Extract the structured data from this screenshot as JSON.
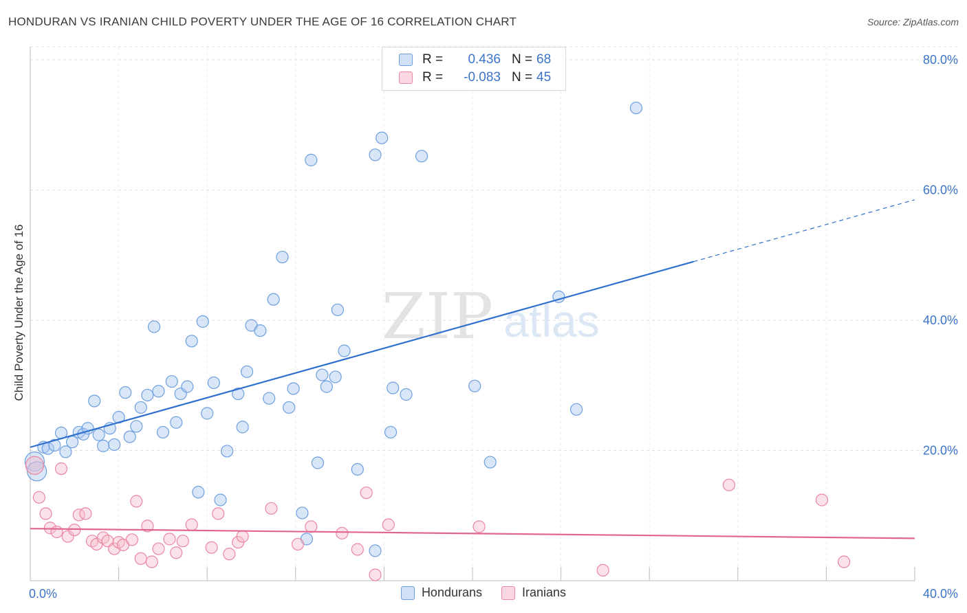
{
  "title": "HONDURAN VS IRANIAN CHILD POVERTY UNDER THE AGE OF 16 CORRELATION CHART",
  "source": "Source: ZipAtlas.com",
  "watermark": {
    "zip": "ZIP",
    "atlas": "atlas"
  },
  "legend": {
    "rows": [
      {
        "r_label": "R =",
        "r_value": "0.436",
        "n_label": "N =",
        "n_value": "68",
        "color": "#a9c8f0",
        "border": "#6d9fe0"
      },
      {
        "r_label": "R =",
        "r_value": "-0.083",
        "n_label": "N =",
        "n_value": "45",
        "color": "#f7bccd",
        "border": "#ea86a4"
      }
    ]
  },
  "bottom_legend": [
    {
      "label": "Hondurans",
      "color": "#a9c8f0",
      "border": "#6d9fe0"
    },
    {
      "label": "Iranians",
      "color": "#f7bccd",
      "border": "#ea86a4"
    }
  ],
  "chart_data": {
    "type": "scatter",
    "title": "HONDURAN VS IRANIAN CHILD POVERTY UNDER THE AGE OF 16 CORRELATION CHART",
    "xlabel": "",
    "ylabel": "Child Poverty Under the Age of 16",
    "xlim": [
      0,
      40
    ],
    "ylim": [
      0,
      82
    ],
    "x_ticks": [
      {
        "value": 0,
        "label": "0.0%"
      },
      {
        "value": 40,
        "label": "40.0%"
      }
    ],
    "y_ticks": [
      {
        "value": 20,
        "label": "20.0%"
      },
      {
        "value": 40,
        "label": "40.0%"
      },
      {
        "value": 60,
        "label": "60.0%"
      },
      {
        "value": 80,
        "label": "80.0%"
      }
    ],
    "grid": true,
    "legend_position": "top-center",
    "series": [
      {
        "name": "Hondurans",
        "color": "#a9c8f0",
        "stroke": "#6d9fe0",
        "line_color": "#2f6fcd",
        "trend": {
          "x0": 0,
          "y0": 20.5,
          "x1": 30,
          "y1": 49,
          "x_ext": 40,
          "y_ext": 58.5
        },
        "points": [
          [
            0.2,
            18.3
          ],
          [
            0.3,
            16.8
          ],
          [
            0.6,
            20.5
          ],
          [
            0.8,
            20.3
          ],
          [
            1.1,
            20.8
          ],
          [
            1.4,
            22.7
          ],
          [
            1.6,
            19.8
          ],
          [
            1.9,
            21.3
          ],
          [
            2.2,
            22.8
          ],
          [
            2.4,
            22.5
          ],
          [
            2.6,
            23.4
          ],
          [
            2.9,
            27.6
          ],
          [
            3.1,
            22.4
          ],
          [
            3.3,
            20.7
          ],
          [
            3.6,
            23.4
          ],
          [
            3.8,
            20.9
          ],
          [
            4.0,
            25.1
          ],
          [
            4.3,
            28.9
          ],
          [
            4.5,
            22.1
          ],
          [
            4.8,
            23.7
          ],
          [
            5.0,
            26.6
          ],
          [
            5.3,
            28.5
          ],
          [
            5.6,
            39.0
          ],
          [
            5.8,
            29.1
          ],
          [
            6.0,
            22.8
          ],
          [
            6.4,
            30.6
          ],
          [
            6.6,
            24.3
          ],
          [
            6.8,
            28.7
          ],
          [
            7.1,
            29.8
          ],
          [
            7.3,
            36.8
          ],
          [
            7.6,
            13.6
          ],
          [
            7.8,
            39.8
          ],
          [
            8.0,
            25.7
          ],
          [
            8.3,
            30.4
          ],
          [
            8.6,
            12.4
          ],
          [
            8.9,
            19.9
          ],
          [
            9.4,
            28.7
          ],
          [
            9.6,
            23.6
          ],
          [
            9.8,
            32.1
          ],
          [
            10.0,
            39.2
          ],
          [
            10.4,
            38.4
          ],
          [
            10.8,
            28.0
          ],
          [
            11.0,
            43.2
          ],
          [
            11.4,
            49.7
          ],
          [
            11.7,
            26.6
          ],
          [
            11.9,
            29.5
          ],
          [
            12.3,
            10.4
          ],
          [
            12.5,
            6.4
          ],
          [
            12.7,
            64.6
          ],
          [
            13.0,
            18.1
          ],
          [
            13.2,
            31.6
          ],
          [
            13.4,
            29.8
          ],
          [
            13.8,
            31.3
          ],
          [
            13.9,
            41.6
          ],
          [
            14.2,
            35.3
          ],
          [
            14.8,
            17.1
          ],
          [
            15.6,
            65.4
          ],
          [
            15.6,
            4.6
          ],
          [
            15.9,
            68.0
          ],
          [
            16.3,
            22.8
          ],
          [
            16.4,
            29.6
          ],
          [
            17.0,
            28.6
          ],
          [
            17.7,
            65.2
          ],
          [
            20.1,
            29.9
          ],
          [
            20.8,
            18.2
          ],
          [
            23.9,
            43.6
          ],
          [
            24.7,
            26.3
          ],
          [
            27.4,
            72.6
          ]
        ]
      },
      {
        "name": "Iranians",
        "color": "#f7bccd",
        "stroke": "#ea86a4",
        "line_color": "#e0668f",
        "trend": {
          "x0": 0,
          "y0": 8.0,
          "x1": 40,
          "y1": 6.5
        },
        "points": [
          [
            0.2,
            17.7
          ],
          [
            0.4,
            12.8
          ],
          [
            0.7,
            10.3
          ],
          [
            0.9,
            8.1
          ],
          [
            1.2,
            7.5
          ],
          [
            1.4,
            17.2
          ],
          [
            1.7,
            6.8
          ],
          [
            2.0,
            7.8
          ],
          [
            2.2,
            10.1
          ],
          [
            2.5,
            10.3
          ],
          [
            2.8,
            6.1
          ],
          [
            3.0,
            5.6
          ],
          [
            3.3,
            6.6
          ],
          [
            3.5,
            6.1
          ],
          [
            3.8,
            4.9
          ],
          [
            4.0,
            5.9
          ],
          [
            4.2,
            5.5
          ],
          [
            4.6,
            6.3
          ],
          [
            4.8,
            12.2
          ],
          [
            5.0,
            3.4
          ],
          [
            5.3,
            8.4
          ],
          [
            5.5,
            2.9
          ],
          [
            5.8,
            4.9
          ],
          [
            6.3,
            6.4
          ],
          [
            6.6,
            4.3
          ],
          [
            6.9,
            6.1
          ],
          [
            7.3,
            8.6
          ],
          [
            8.2,
            5.1
          ],
          [
            8.5,
            10.3
          ],
          [
            9.0,
            4.1
          ],
          [
            9.4,
            5.9
          ],
          [
            9.6,
            6.8
          ],
          [
            10.9,
            11.1
          ],
          [
            12.1,
            5.6
          ],
          [
            12.7,
            8.3
          ],
          [
            14.1,
            7.3
          ],
          [
            14.8,
            4.8
          ],
          [
            15.2,
            13.5
          ],
          [
            15.6,
            0.9
          ],
          [
            16.2,
            8.6
          ],
          [
            20.3,
            8.3
          ],
          [
            25.9,
            1.6
          ],
          [
            31.6,
            14.7
          ],
          [
            35.8,
            12.4
          ],
          [
            36.8,
            2.9
          ]
        ]
      }
    ]
  }
}
